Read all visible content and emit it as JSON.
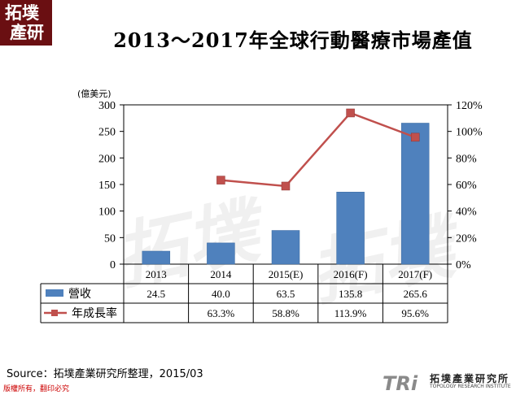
{
  "logo": {
    "line1": "拓墣",
    "line2": "產研"
  },
  "title": "2013～2017年全球行動醫療市場產值",
  "chart_data": {
    "type": "bar+line",
    "title": "2013～2017年全球行動醫療市場產值",
    "y_left_unit": "(億美元)",
    "y_left_ticks": [
      0,
      50,
      100,
      150,
      200,
      250,
      300
    ],
    "y_left_range": [
      0,
      300
    ],
    "y_right_ticks": [
      "0%",
      "20%",
      "40%",
      "60%",
      "80%",
      "100%",
      "120%"
    ],
    "y_right_range": [
      0,
      120
    ],
    "categories": [
      "2013",
      "2014",
      "2015(E)",
      "2016(F)",
      "2017(F)"
    ],
    "series": [
      {
        "name": "營收",
        "type": "bar",
        "color": "#4f81bd",
        "values": [
          24.5,
          40.0,
          63.5,
          135.8,
          265.6
        ],
        "labels": [
          "24.5",
          "40.0",
          "63.5",
          "135.8",
          "265.6"
        ]
      },
      {
        "name": "年成長率",
        "type": "line",
        "color": "#c0504d",
        "values": [
          null,
          63.3,
          58.8,
          113.9,
          95.6
        ],
        "labels": [
          "",
          "63.3%",
          "58.8%",
          "113.9%",
          "95.6%"
        ]
      }
    ],
    "grid": false,
    "legend": "data-table"
  },
  "source": "Source：拓墣產業研究所整理，2015/03",
  "footer": "版權所有，翻印必究",
  "brand": {
    "mark": "TRi",
    "name": "拓墣產業研究所",
    "sub": "TOPOLOGY RESEARCH INSTITUTE"
  }
}
